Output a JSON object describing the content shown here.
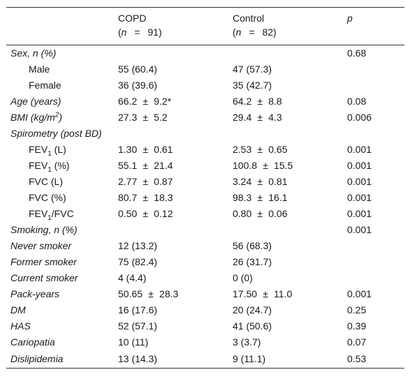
{
  "header": {
    "copd_label": "COPD",
    "copd_n": "91",
    "control_label": "Control",
    "control_n": "82",
    "p_label": "p",
    "n_symbol": "n",
    "eq_symbol": "="
  },
  "rows": [
    {
      "label": "Sex, n (%)",
      "copd": "",
      "control": "",
      "p": "0.68"
    },
    {
      "label": "Male",
      "copd": "55 (60.4)",
      "control": "47 (57.3)",
      "p": ""
    },
    {
      "label": "Female",
      "copd": "36 (39.6)",
      "control": "35 (42.7)",
      "p": ""
    },
    {
      "label": "Age (years)",
      "copd_a": "66.2",
      "copd_b": "9.2*",
      "control_a": "64.2",
      "control_b": "8.8",
      "p": "0.08"
    },
    {
      "label_pre": "BMI (kg/m",
      "label_sup": "2",
      "label_post": ")",
      "copd_a": "27.3",
      "copd_b": "5.2",
      "control_a": "29.4",
      "control_b": "4.3",
      "p": "0.006"
    },
    {
      "label": "Spirometry (post BD)",
      "p": ""
    },
    {
      "label_pre": "FEV",
      "label_sub": "1",
      "label_post": " (L)",
      "copd_a": "1.30",
      "copd_b": "0.61",
      "control_a": "2.53",
      "control_b": "0.65",
      "p": "0.001"
    },
    {
      "label_pre": "FEV",
      "label_sub": "1",
      "label_post": " (%)",
      "copd_a": "55.1",
      "copd_b": "21.4",
      "control_a": "100.8",
      "control_b": "15.5",
      "p": "0.001"
    },
    {
      "label": "FVC (L)",
      "copd_a": "2.77",
      "copd_b": "0.87",
      "control_a": "3.24",
      "control_b": "0.81",
      "p": "0.001"
    },
    {
      "label": "FVC (%)",
      "copd_a": "80.7",
      "copd_b": "18.3",
      "control_a": "98.3",
      "control_b": "16.1",
      "p": "0.001"
    },
    {
      "label_pre": "FEV",
      "label_sub": "1",
      "label_post": "/FVC",
      "copd_a": "0.50",
      "copd_b": "0.12",
      "control_a": "0.80",
      "control_b": "0.06",
      "p": "0.001"
    },
    {
      "label": "Smoking, n (%)",
      "p": "0.001"
    },
    {
      "label": "Never smoker",
      "copd": "12 (13.2)",
      "control": "56 (68.3)",
      "p": ""
    },
    {
      "label": "Former smoker",
      "copd": "75 (82.4)",
      "control": "26 (31.7)",
      "p": ""
    },
    {
      "label": "Current smoker",
      "copd": "4 (4.4)",
      "control": "0 (0)",
      "p": ""
    },
    {
      "label": "Pack-years",
      "copd_a": "50.65",
      "copd_b": "28.3",
      "control_a": "17.50",
      "control_b": "11.0",
      "p": "0.001"
    },
    {
      "label": "DM",
      "copd": "16 (17.6)",
      "control": "20 (24.7)",
      "p": "0.25"
    },
    {
      "label": "HAS",
      "copd": "52 (57.1)",
      "control": "41 (50.6)",
      "p": "0.39"
    },
    {
      "label": "Cariopatia",
      "copd": "10 (11)",
      "control": "3 (3.7)",
      "p": "0.07"
    },
    {
      "label": "Dislipidemia",
      "copd": "13 (14.3)",
      "control": "9 (11.1)",
      "p": "0.53"
    }
  ],
  "pm_symbol": "±"
}
